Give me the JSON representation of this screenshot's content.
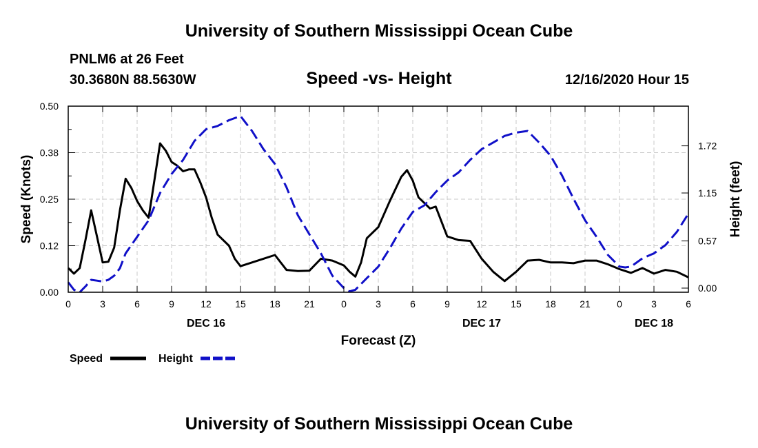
{
  "header": {
    "title": "University of Southern Mississippi Ocean Cube",
    "station": "PNLM6 at 26 Feet",
    "coords": "30.3680N 88.5630W",
    "date": "12/16/2020 Hour 15",
    "footer": "University of Southern Mississippi Ocean Cube"
  },
  "colors": {
    "speed": "#000000",
    "height": "#1010c8",
    "grid": "#c8c8c8"
  },
  "chart_data": {
    "type": "line",
    "title": "Speed -vs- Height",
    "xlabel": "Forecast (Z)",
    "ylabel": "Speed (Knots)",
    "y2label": "Height (feet)",
    "xlim": [
      0,
      54
    ],
    "ylim": [
      0,
      0.5
    ],
    "y2lim": [
      -0.05,
      2.2
    ],
    "x_ticks": [
      0,
      3,
      6,
      9,
      12,
      15,
      18,
      21,
      24,
      27,
      30,
      33,
      36,
      39,
      42,
      45,
      48,
      51,
      54
    ],
    "x_tick_labels": [
      "0",
      "3",
      "6",
      "9",
      "12",
      "15",
      "18",
      "21",
      "0",
      "3",
      "6",
      "9",
      "12",
      "15",
      "18",
      "21",
      "0",
      "3",
      "6"
    ],
    "y_ticks": [
      0,
      0.125,
      0.25,
      0.375,
      0.5
    ],
    "y_tick_labels": [
      "0.00",
      "0.12",
      "0.25",
      "0.38",
      "0.50"
    ],
    "y2_ticks": [
      0,
      0.57,
      1.15,
      1.72
    ],
    "y2_tick_labels": [
      "0.00",
      "0.57",
      "1.15",
      "1.72"
    ],
    "day_labels": [
      {
        "x": 12,
        "label": "DEC 16"
      },
      {
        "x": 36,
        "label": "DEC 17"
      },
      {
        "x": 51,
        "label": "DEC 18"
      }
    ],
    "legend": [
      {
        "name": "Speed",
        "style": "solid"
      },
      {
        "name": "Height",
        "style": "dashed"
      }
    ],
    "series": [
      {
        "name": "Speed",
        "axis": "left",
        "style": "solid",
        "x": [
          0,
          0.5,
          1,
          1.5,
          2,
          2.5,
          3,
          3.5,
          4,
          4.5,
          5,
          5.5,
          6,
          6.5,
          7,
          7.5,
          8,
          8.5,
          9,
          9.5,
          10,
          10.5,
          11,
          11.5,
          12,
          12.5,
          13,
          13.5,
          14,
          14.5,
          15,
          16,
          17,
          18,
          19,
          20,
          21,
          22,
          23,
          24,
          24.5,
          25,
          25.5,
          26,
          27,
          28,
          29,
          29.5,
          30,
          30.5,
          31,
          31.5,
          32,
          33,
          33.5,
          34,
          35,
          36,
          37,
          38,
          39,
          40,
          41,
          42,
          43,
          44,
          45,
          46,
          47,
          48,
          48.5,
          49,
          50,
          51,
          52,
          53,
          54
        ],
        "values": [
          0.065,
          0.05,
          0.065,
          0.14,
          0.22,
          0.15,
          0.08,
          0.082,
          0.12,
          0.22,
          0.305,
          0.28,
          0.245,
          0.22,
          0.2,
          0.3,
          0.4,
          0.38,
          0.35,
          0.34,
          0.325,
          0.33,
          0.33,
          0.295,
          0.255,
          0.2,
          0.155,
          0.14,
          0.125,
          0.09,
          0.07,
          0.08,
          0.09,
          0.1,
          0.06,
          0.057,
          0.058,
          0.09,
          0.085,
          0.072,
          0.055,
          0.042,
          0.08,
          0.145,
          0.175,
          0.245,
          0.31,
          0.328,
          0.3,
          0.255,
          0.24,
          0.225,
          0.23,
          0.15,
          0.145,
          0.14,
          0.138,
          0.09,
          0.055,
          0.03,
          0.055,
          0.085,
          0.087,
          0.08,
          0.08,
          0.078,
          0.085,
          0.085,
          0.075,
          0.062,
          0.057,
          0.052,
          0.065,
          0.05,
          0.06,
          0.055,
          0.04
        ]
      },
      {
        "name": "Height",
        "axis": "right",
        "style": "dashed",
        "x": [
          0,
          0.5,
          1,
          1.5,
          2,
          2.5,
          3,
          3.5,
          4,
          4.5,
          5,
          6,
          7,
          8,
          9,
          10,
          11,
          12,
          13,
          14,
          15,
          16,
          17,
          18,
          19,
          20,
          21,
          22,
          23,
          24,
          24.5,
          25,
          25.5,
          26,
          27,
          28,
          29,
          30,
          31,
          32,
          33,
          34,
          35,
          36,
          37,
          38,
          39,
          40,
          41,
          42,
          43,
          44,
          45,
          46,
          47,
          48,
          48.5,
          49,
          50,
          51,
          52,
          53,
          54
        ],
        "values": [
          0.07,
          -0.02,
          -0.05,
          0.02,
          0.1,
          0.09,
          0.08,
          0.1,
          0.15,
          0.24,
          0.42,
          0.62,
          0.82,
          1.15,
          1.38,
          1.55,
          1.78,
          1.92,
          1.96,
          2.03,
          2.08,
          1.9,
          1.68,
          1.5,
          1.22,
          0.88,
          0.65,
          0.42,
          0.15,
          0.0,
          -0.04,
          -0.02,
          0.05,
          0.12,
          0.26,
          0.48,
          0.72,
          0.92,
          1.0,
          1.16,
          1.3,
          1.4,
          1.55,
          1.68,
          1.76,
          1.84,
          1.88,
          1.9,
          1.76,
          1.6,
          1.36,
          1.08,
          0.82,
          0.62,
          0.4,
          0.26,
          0.25,
          0.26,
          0.36,
          0.42,
          0.52,
          0.68,
          0.9
        ]
      }
    ]
  }
}
